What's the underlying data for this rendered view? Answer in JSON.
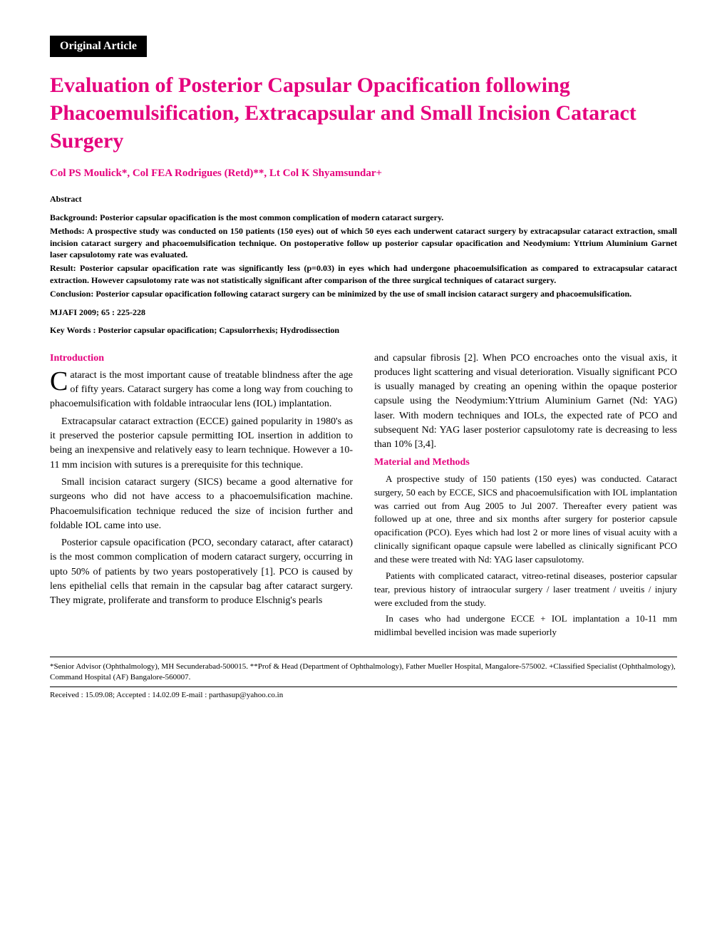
{
  "articleType": "Original Article",
  "title": "Evaluation of Posterior Capsular Opacification following Phacoemulsification, Extracapsular and Small Incision Cataract Surgery",
  "authors": "Col PS Moulick*, Col FEA Rodrigues (Retd)**, Lt Col K Shyamsundar+",
  "abstractLabel": "Abstract",
  "abstract": {
    "background": "Background: Posterior capsular opacification is the most common complication of modern cataract surgery.",
    "methods": "Methods: A prospective study was conducted on 150 patients (150 eyes) out of which 50 eyes each underwent cataract surgery by extracapsular cataract extraction, small incision cataract surgery and phacoemulsification technique. On postoperative follow up posterior capsular opacification and Neodymium: Yttrium Aluminium Garnet laser capsulotomy rate was evaluated.",
    "result": "Result: Posterior capsular opacification rate was significantly less (p=0.03) in eyes which had undergone phacoemulsification as compared to extracapsular cataract extraction. However capsulotomy rate was not statistically significant after comparison of the three surgical techniques of cataract surgery.",
    "conclusion": "Conclusion: Posterior capsular opacification following cataract surgery can be minimized by the use of small incision cataract surgery and phacoemulsification."
  },
  "journalRef": "MJAFI 2009; 65 : 225-228",
  "keywords": "Key Words : Posterior capsular opacification; Capsulorrhexis; Hydrodissection",
  "headings": {
    "introduction": "Introduction",
    "materialMethods": "Material and Methods"
  },
  "leftColumn": {
    "dropcap": "C",
    "p1": "ataract is the most important cause of treatable blindness after the age of fifty years. Cataract surgery has come a long way from couching to phacoemulsification with foldable intraocular lens (IOL) implantation.",
    "p2": "Extracapsular cataract extraction (ECCE) gained popularity in 1980's as it preserved the posterior capsule permitting IOL insertion in addition to being an inexpensive and relatively easy to learn technique. However a 10-11 mm incision with sutures is a prerequisite for this technique.",
    "p3": "Small incision cataract surgery (SICS) became a good alternative for surgeons who did not have access to a phacoemulsification machine. Phacoemulsification technique reduced the size of incision further and foldable IOL came into use.",
    "p4": "Posterior capsule opacification (PCO, secondary cataract, after cataract) is the most common complication of modern cataract surgery, occurring in upto 50% of patients by two years postoperatively [1]. PCO is caused by lens epithelial cells that remain in the capsular bag after cataract surgery. They migrate, proliferate and transform to produce Elschnig's pearls"
  },
  "rightColumn": {
    "p1": "and capsular fibrosis [2]. When PCO encroaches onto the visual axis, it produces light scattering and visual deterioration. Visually significant PCO is usually managed by creating an opening within the opaque posterior capsule using the Neodymium:Yttrium Aluminium Garnet (Nd: YAG) laser. With modern techniques and IOLs, the expected rate of PCO and subsequent Nd: YAG laser posterior capsulotomy rate is decreasing to less than 10% [3,4].",
    "p2": "A prospective study of 150 patients (150 eyes) was conducted. Cataract surgery, 50 each by ECCE, SICS and phacoemulsification with IOL implantation was carried out from Aug 2005 to Jul 2007. Thereafter every patient was followed up at one, three and six months after surgery for posterior capsule opacification (PCO). Eyes which had lost 2 or more lines of visual acuity with a clinically significant opaque capsule were labelled as clinically significant PCO and these were treated with Nd: YAG laser capsulotomy.",
    "p3": "Patients with complicated cataract, vitreo-retinal diseases, posterior capsular tear, previous history of intraocular surgery / laser treatment / uveitis / injury were excluded from the study.",
    "p4": "In cases who had undergone ECCE + IOL implantation a 10-11 mm midlimbal bevelled incision was made superiorly"
  },
  "footer": {
    "affiliations": "*Senior Advisor (Ophthalmology), MH Secunderabad-500015. **Prof & Head (Department of Ophthalmology), Father Mueller Hospital, Mangalore-575002. +Classified Specialist (Ophthalmology), Command Hospital (AF) Bangalore-560007.",
    "received": "Received : 15.09.08; Accepted : 14.02.09     E-mail : parthasup@yahoo.co.in"
  },
  "colors": {
    "accent": "#e5007d",
    "text": "#000000",
    "background": "#ffffff",
    "badgeBg": "#000000",
    "badgeText": "#ffffff"
  }
}
